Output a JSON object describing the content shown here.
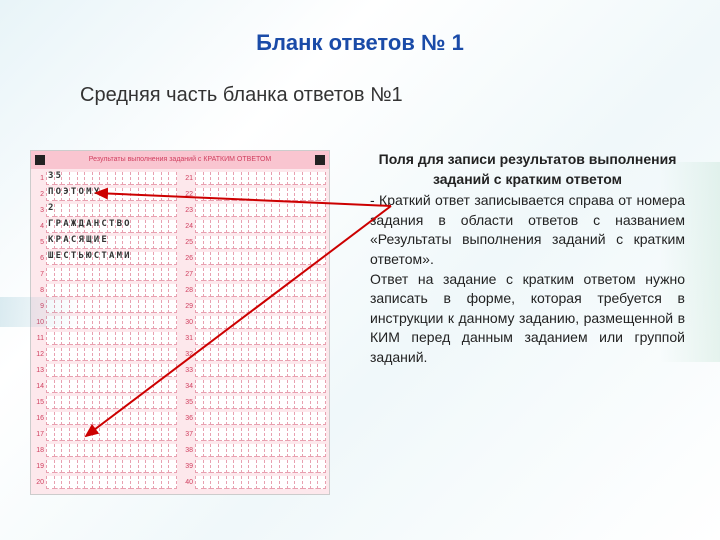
{
  "mainTitle": "Бланк ответов № 1",
  "subtitle": "Средняя часть бланка ответов №1",
  "formHeader": "Результаты выполнения заданий с КРАТКИМ ОТВЕТОМ",
  "leftColumn": {
    "start": 1,
    "count": 20,
    "entries": {
      "1": "35",
      "2": "ПОЭТОМУ",
      "3": "2",
      "4": "ГРАЖДАНСТВО",
      "5": "КРАСЯЩИЕ",
      "6": "ШЕСТЬЮСТАМИ"
    }
  },
  "rightColumn": {
    "start": 21,
    "count": 20
  },
  "explain": {
    "heading": "Поля для записи результатов выполнения заданий с кратким ответом",
    "body1": "- Краткий ответ записывается справа от номера задания в области ответов с названием «Результаты выполнения заданий с кратким ответом».",
    "body2": "Ответ на задание с кратким ответом нужно записать в форме, которая требуется в инструкции к данному заданию, размещенной в КИМ перед данным заданием или группой заданий."
  },
  "colors": {
    "titleColor": "#1a4ba8",
    "formBg": "#fde8ec",
    "formHeaderBg": "#f9c5d0",
    "cellBorder": "#e8a0b0",
    "arrowColor": "#cc0000"
  }
}
